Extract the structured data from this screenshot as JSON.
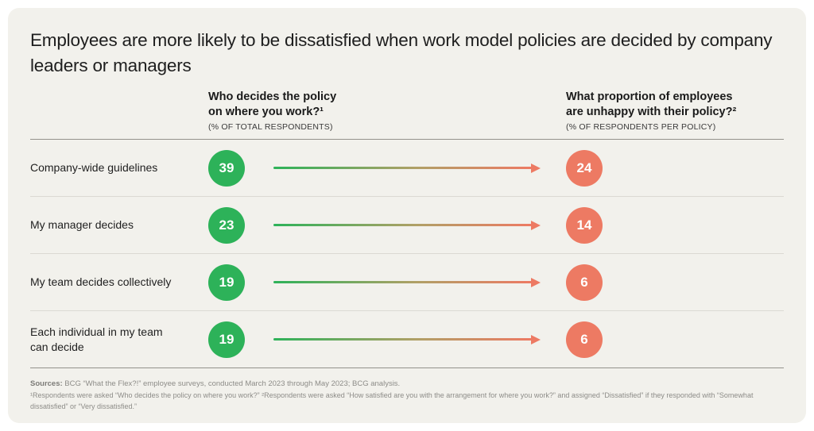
{
  "title": "Employees are more likely to be dissatisfied when work model policies are decided by company leaders or managers",
  "columns": {
    "left": {
      "title_lines": [
        "Who decides the policy",
        "on where you work?¹"
      ],
      "subtitle": "(% OF TOTAL RESPONDENTS)"
    },
    "right": {
      "title_lines": [
        "What proportion of employees",
        "are unhappy with their policy?²"
      ],
      "subtitle": "(% OF RESPONDENTS PER POLICY)"
    }
  },
  "rows": [
    {
      "label": "Company-wide guidelines",
      "who_decides_pct": 39,
      "unhappy_pct": 24
    },
    {
      "label": "My manager decides",
      "who_decides_pct": 23,
      "unhappy_pct": 14
    },
    {
      "label": "My team decides collectively",
      "who_decides_pct": 19,
      "unhappy_pct": 6
    },
    {
      "label": "Each individual in my team can decide",
      "who_decides_pct": 19,
      "unhappy_pct": 6
    }
  ],
  "footer": {
    "sources_label": "Sources:",
    "sources_text": "BCG “What the Flex?!” employee surveys, conducted March 2023 through May 2023; BCG analysis.",
    "footnote": "¹Respondents were asked “Who decides the policy on where you work?” ²Respondents were asked “How satisfied are you with the arrangement for where you work?” and assigned “Dissatisfied” if they responded with “Somewhat dissatisfied” or “Very dissatisfied.”"
  },
  "colors": {
    "green": "#2db259",
    "salmon": "#ed7a63",
    "card_background": "#f2f1ec",
    "divider_strong": "#94928c",
    "divider_light": "#dbd9d3"
  },
  "chart_data": {
    "type": "table",
    "title": "Employees are more likely to be dissatisfied when work model policies are decided by company leaders or managers",
    "categories": [
      "Company-wide guidelines",
      "My manager decides",
      "My team decides collectively",
      "Each individual in my team can decide"
    ],
    "series": [
      {
        "name": "Who decides the policy on where you work? (% of total respondents)",
        "values": [
          39,
          23,
          19,
          19
        ]
      },
      {
        "name": "What proportion of employees are unhappy with their policy? (% of respondents per policy)",
        "values": [
          24,
          14,
          6,
          6
        ]
      }
    ],
    "legend_position": "none",
    "grid": false
  }
}
